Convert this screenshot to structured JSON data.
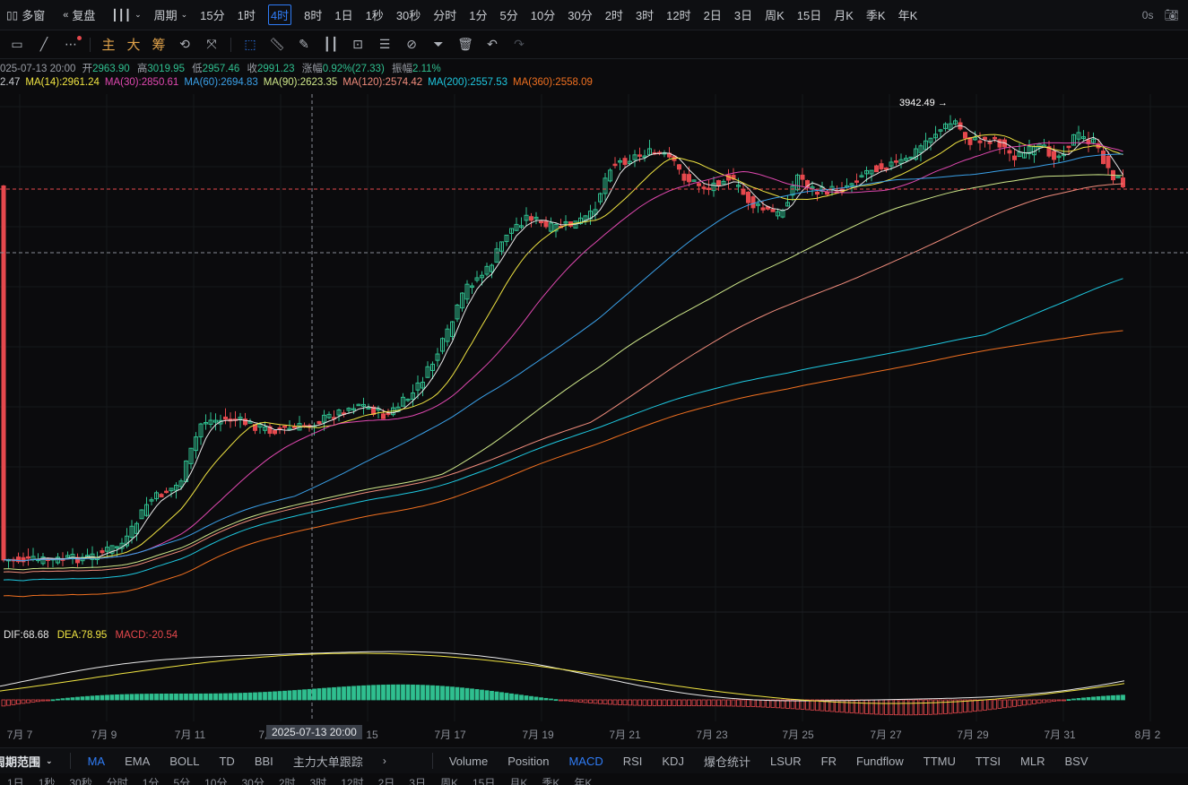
{
  "topbar": {
    "multi_window": "多窗",
    "replay": "复盘",
    "chart_type": "",
    "period_menu": "周期",
    "periods": [
      "15分",
      "1时",
      "4时",
      "8时",
      "1日",
      "1秒",
      "30秒",
      "分时",
      "1分",
      "5分",
      "10分",
      "30分",
      "2时",
      "3时",
      "12时",
      "2日",
      "3日",
      "周K",
      "15日",
      "月K",
      "季K",
      "年K"
    ],
    "active_period": "4时",
    "countdown": "0s"
  },
  "toolbar": {
    "text_tools": [
      "主",
      "大",
      "筹"
    ]
  },
  "ohlc": {
    "date": "025-07-13 20:00",
    "open_label": "开",
    "open": "2963.90",
    "high_label": "高",
    "high": "3019.95",
    "low_label": "低",
    "low": "2957.46",
    "close_label": "收",
    "close": "2991.23",
    "change_label": "涨幅",
    "change": "0.92%(27.33)",
    "amp_label": "振幅",
    "amp": "2.11%"
  },
  "ma_legend": [
    {
      "label": "2.47",
      "color": "#c9ccd1"
    },
    {
      "label": "MA(14):2961.24",
      "color": "#f0e442"
    },
    {
      "label": "MA(30):2850.61",
      "color": "#e048b0"
    },
    {
      "label": "MA(60):2694.83",
      "color": "#3aa0e8"
    },
    {
      "label": "MA(90):2623.35",
      "color": "#cfe88a"
    },
    {
      "label": "MA(120):2574.42",
      "color": "#f08c7c"
    },
    {
      "label": "MA(200):2557.53",
      "color": "#1ec8e0"
    },
    {
      "label": "MA(360):2558.09",
      "color": "#f07020"
    }
  ],
  "high_marker": "3942.49",
  "macd": {
    "dif": "DIF:68.68",
    "dea": "DEA:78.95",
    "macd": "MACD:-20.54"
  },
  "xaxis": {
    "labels": [
      "7月 7",
      "7月 9",
      "7月 11",
      "7月 13",
      "7月 15",
      "7月 17",
      "7月 19",
      "7月 21",
      "7月 23",
      "7月 25",
      "7月 27",
      "7月 29",
      "7月 31",
      "8月 2"
    ],
    "crosshair_label": "2025-07-13 20:00"
  },
  "bottombar": {
    "left_label": "周期范围",
    "indicators_main": [
      "MA",
      "EMA",
      "BOLL",
      "TD",
      "BBI",
      "主力大单跟踪"
    ],
    "active_main": "MA",
    "indicators_sub": [
      "Volume",
      "Position",
      "MACD",
      "RSI",
      "KDJ",
      "爆仓统计",
      "LSUR",
      "FR",
      "Fundflow",
      "TTMU",
      "TTSI",
      "MLR",
      "BSV"
    ],
    "active_sub": "MACD"
  },
  "bottombar2": [
    "1日",
    "1秒",
    "30秒",
    "分时",
    "1分",
    "5分",
    "10分",
    "30分",
    "2时",
    "3时",
    "12时",
    "2日",
    "3日",
    "周K",
    "15日",
    "月K",
    "季K",
    "年K"
  ],
  "colors": {
    "up": "#2fbf8f",
    "down": "#e5484d",
    "accent": "#2f7cf6",
    "dif": "#e8e8e8",
    "dea": "#f0e442",
    "macd": "#e5484d"
  }
}
